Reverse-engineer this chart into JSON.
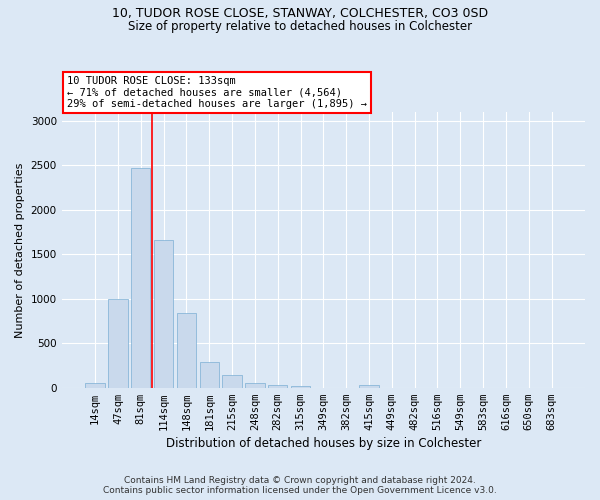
{
  "title_line1": "10, TUDOR ROSE CLOSE, STANWAY, COLCHESTER, CO3 0SD",
  "title_line2": "Size of property relative to detached houses in Colchester",
  "xlabel": "Distribution of detached houses by size in Colchester",
  "ylabel": "Number of detached properties",
  "bin_labels": [
    "14sqm",
    "47sqm",
    "81sqm",
    "114sqm",
    "148sqm",
    "181sqm",
    "215sqm",
    "248sqm",
    "282sqm",
    "315sqm",
    "349sqm",
    "382sqm",
    "415sqm",
    "449sqm",
    "482sqm",
    "516sqm",
    "549sqm",
    "583sqm",
    "616sqm",
    "650sqm",
    "683sqm"
  ],
  "bar_values": [
    55,
    1000,
    2470,
    1660,
    840,
    290,
    145,
    50,
    35,
    20,
    0,
    0,
    30,
    0,
    0,
    0,
    0,
    0,
    0,
    0,
    0
  ],
  "bar_color": "#c9d9ec",
  "bar_edgecolor": "#7bafd4",
  "annotation_text": "10 TUDOR ROSE CLOSE: 133sqm\n← 71% of detached houses are smaller (4,564)\n29% of semi-detached houses are larger (1,895) →",
  "annotation_box_color": "white",
  "annotation_box_edgecolor": "red",
  "vline_color": "red",
  "vline_x": 2.5,
  "ylim": [
    0,
    3100
  ],
  "yticks": [
    0,
    500,
    1000,
    1500,
    2000,
    2500,
    3000
  ],
  "footer_line1": "Contains HM Land Registry data © Crown copyright and database right 2024.",
  "footer_line2": "Contains public sector information licensed under the Open Government Licence v3.0.",
  "background_color": "#dce8f5",
  "bar_linewidth": 0.5,
  "title1_fontsize": 9.0,
  "title2_fontsize": 8.5,
  "ylabel_fontsize": 8.0,
  "xlabel_fontsize": 8.5,
  "tick_fontsize": 7.5,
  "ann_fontsize": 7.5,
  "footer_fontsize": 6.5
}
